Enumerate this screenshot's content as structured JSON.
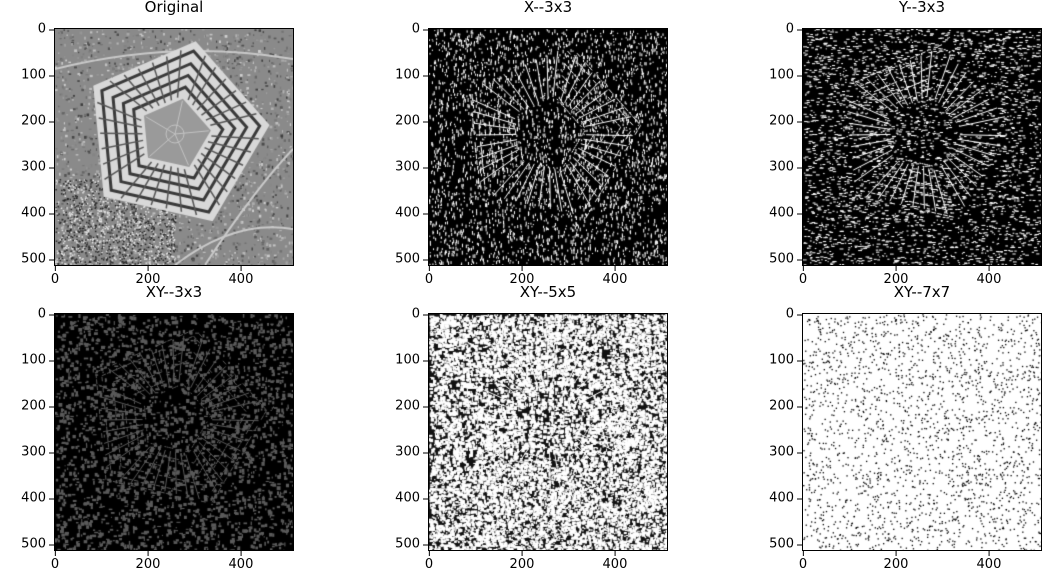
{
  "figure": {
    "panels": [
      {
        "title": "Original",
        "style": "original"
      },
      {
        "title": "X--3x3",
        "style": "edge-x"
      },
      {
        "title": "Y--3x3",
        "style": "edge-y"
      },
      {
        "title": "XY--3x3",
        "style": "edge-xy-dark"
      },
      {
        "title": "XY--5x5",
        "style": "edge-xy-mid"
      },
      {
        "title": "XY--7x7",
        "style": "edge-xy-light"
      }
    ],
    "xticks": [
      "0",
      "200",
      "400"
    ],
    "yticks": [
      "0",
      "100",
      "200",
      "300",
      "400",
      "500"
    ],
    "image_size": 512
  },
  "colors": {
    "background": "#ffffff",
    "axis": "#000000"
  }
}
